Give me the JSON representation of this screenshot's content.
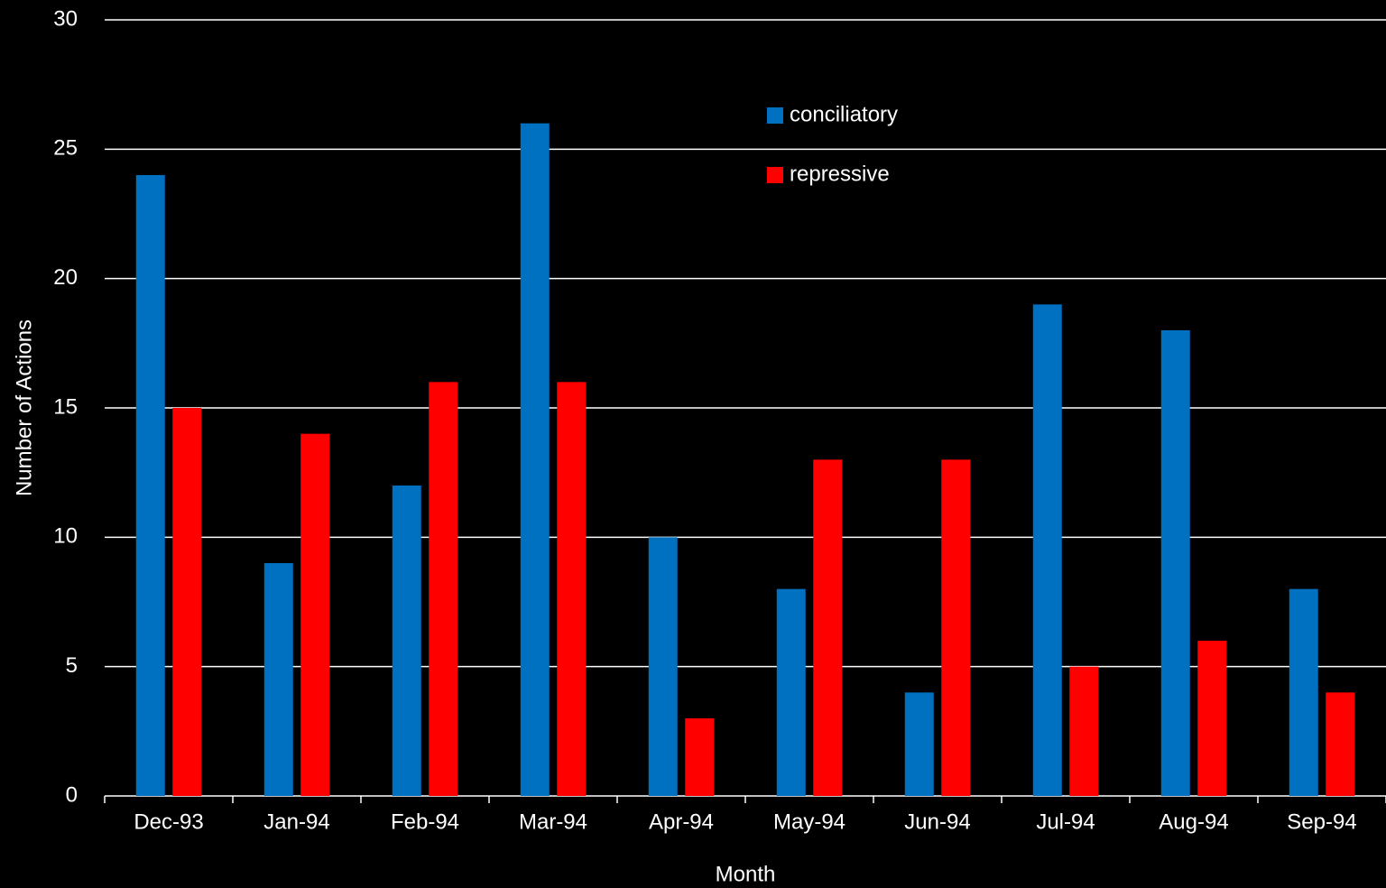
{
  "chart_data": {
    "type": "bar",
    "x_label": "Month",
    "y_label": "Number of Actions",
    "categories": [
      "Dec-93",
      "Jan-94",
      "Feb-94",
      "Mar-94",
      "Apr-94",
      "May-94",
      "Jun-94",
      "Jul-94",
      "Aug-94",
      "Sep-94"
    ],
    "series": [
      {
        "name": "conciliatory",
        "color": "#0070c0",
        "values": [
          24,
          9,
          12,
          26,
          10,
          8,
          4,
          19,
          18,
          8
        ]
      },
      {
        "name": "repressive",
        "color": "#ff0000",
        "values": [
          15,
          14,
          16,
          16,
          3,
          13,
          13,
          5,
          6,
          4
        ]
      }
    ],
    "ylim": [
      0,
      30
    ],
    "yticks": [
      0,
      5,
      10,
      15,
      20,
      25,
      30
    ],
    "grid": true,
    "legend": "upper center"
  }
}
